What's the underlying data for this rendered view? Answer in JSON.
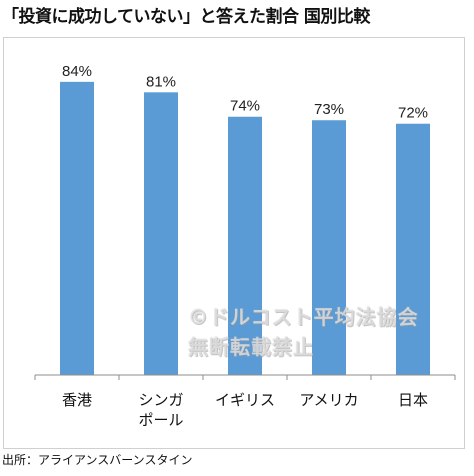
{
  "title": "「投資に成功していない」と答えた割合 国別比較",
  "source": "出所：アライアンスバーンスタイン",
  "watermark": {
    "line1": "©ドルコスト平均法協会",
    "line2": "無断転載禁止"
  },
  "colors": {
    "bar": "#5b9bd5",
    "axis": "#8c8c8c",
    "frame": "#d0d0d0"
  },
  "chart_data": {
    "type": "bar",
    "categories": [
      [
        "香港"
      ],
      [
        "シンガ",
        "ポール"
      ],
      [
        "イギリス"
      ],
      [
        "アメリカ"
      ],
      [
        "日本"
      ]
    ],
    "values": [
      84,
      81,
      74,
      73,
      72
    ],
    "data_labels": [
      "84%",
      "81%",
      "74%",
      "73%",
      "72%"
    ],
    "ylim": [
      0,
      100
    ],
    "grid": false,
    "legend": "none"
  }
}
